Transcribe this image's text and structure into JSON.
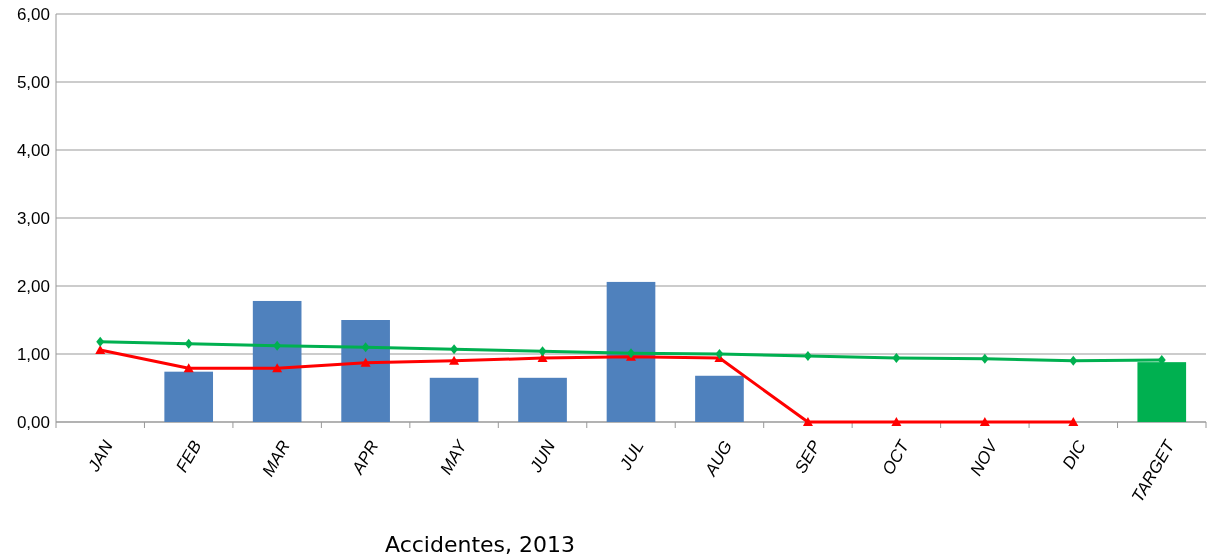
{
  "chart_data": {
    "type": "bar",
    "xlabel": "Accidentes, 2013",
    "categories": [
      "JAN",
      "FEB",
      "MAR",
      "APR",
      "MAY",
      "JUN",
      "JUL",
      "AUG",
      "SEP",
      "OCT",
      "NOV",
      "DIC",
      "TARGET"
    ],
    "series": [
      {
        "colors": [
          null,
          "#4f81bd",
          "#4f81bd",
          "#4f81bd",
          "#4f81bd",
          "#4f81bd",
          "#4f81bd",
          "#4f81bd",
          null,
          null,
          null,
          null,
          "#00b050"
        ],
        "values": [
          null,
          0.74,
          1.78,
          1.5,
          0.65,
          0.65,
          2.06,
          0.68,
          null,
          null,
          null,
          null,
          0.88
        ]
      },
      {
        "type": "line",
        "color": "#ff0000",
        "marker": "triangle",
        "values": [
          1.06,
          0.79,
          0.79,
          0.87,
          0.9,
          0.94,
          0.96,
          0.94,
          0,
          0,
          0,
          0,
          null
        ]
      },
      {
        "type": "line",
        "color": "#00b050",
        "marker": "diamond",
        "values": [
          1.18,
          1.15,
          1.12,
          1.1,
          1.07,
          1.04,
          1.01,
          1.0,
          0.97,
          0.94,
          0.93,
          0.9,
          0.91
        ]
      }
    ],
    "ylim": [
      0,
      6
    ],
    "yticks": [
      {
        "value": 0,
        "label": "0,00"
      },
      {
        "value": 1,
        "label": "1,00"
      },
      {
        "value": 2,
        "label": "2,00"
      },
      {
        "value": 3,
        "label": "3,00"
      },
      {
        "value": 4,
        "label": "4,00"
      },
      {
        "value": 5,
        "label": "5,00"
      },
      {
        "value": 6,
        "label": "6,00"
      }
    ],
    "grid": "y"
  }
}
